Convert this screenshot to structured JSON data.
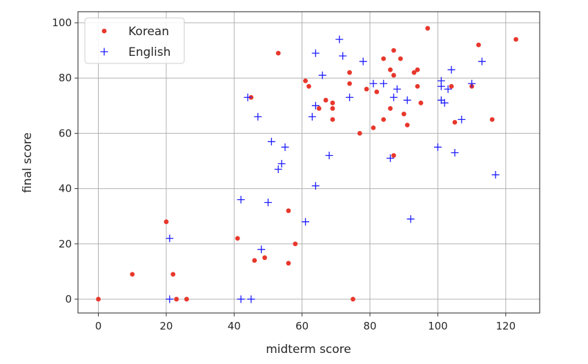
{
  "chart_data": {
    "type": "scatter",
    "title": "",
    "xlabel": "midterm score",
    "ylabel": "final score",
    "xlim": [
      -6,
      130
    ],
    "ylim": [
      -5,
      104
    ],
    "x_ticks": [
      0,
      20,
      40,
      60,
      80,
      100,
      120
    ],
    "y_ticks": [
      0,
      20,
      40,
      60,
      80,
      100
    ],
    "grid": true,
    "legend_position": "top-left",
    "series": [
      {
        "name": "Korean",
        "marker": "dot",
        "color": "#e8372c",
        "points": [
          [
            0,
            0
          ],
          [
            10,
            9
          ],
          [
            20,
            28
          ],
          [
            22,
            9
          ],
          [
            23,
            0
          ],
          [
            26,
            0
          ],
          [
            41,
            22
          ],
          [
            45,
            73
          ],
          [
            46,
            14
          ],
          [
            49,
            15
          ],
          [
            53,
            89
          ],
          [
            56,
            32
          ],
          [
            56,
            13
          ],
          [
            58,
            20
          ],
          [
            61,
            79
          ],
          [
            62,
            77
          ],
          [
            65,
            69
          ],
          [
            67,
            72
          ],
          [
            69,
            71
          ],
          [
            69,
            69
          ],
          [
            69,
            65
          ],
          [
            74,
            82
          ],
          [
            74,
            78
          ],
          [
            75,
            0
          ],
          [
            77,
            60
          ],
          [
            79,
            76
          ],
          [
            81,
            62
          ],
          [
            82,
            75
          ],
          [
            84,
            87
          ],
          [
            84,
            65
          ],
          [
            86,
            83
          ],
          [
            86,
            69
          ],
          [
            87,
            90
          ],
          [
            87,
            81
          ],
          [
            87,
            52
          ],
          [
            89,
            87
          ],
          [
            90,
            67
          ],
          [
            91,
            63
          ],
          [
            93,
            82
          ],
          [
            94,
            83
          ],
          [
            94,
            77
          ],
          [
            95,
            71
          ],
          [
            97,
            98
          ],
          [
            104,
            77
          ],
          [
            105,
            64
          ],
          [
            110,
            77
          ],
          [
            112,
            92
          ],
          [
            116,
            65
          ],
          [
            123,
            94
          ]
        ]
      },
      {
        "name": "English",
        "marker": "plus",
        "color": "#1a1aff",
        "points": [
          [
            21,
            22
          ],
          [
            21,
            0
          ],
          [
            42,
            36
          ],
          [
            42,
            0
          ],
          [
            44,
            73
          ],
          [
            45,
            0
          ],
          [
            47,
            66
          ],
          [
            48,
            18
          ],
          [
            50,
            35
          ],
          [
            51,
            57
          ],
          [
            53,
            47
          ],
          [
            54,
            49
          ],
          [
            55,
            55
          ],
          [
            61,
            28
          ],
          [
            63,
            66
          ],
          [
            64,
            89
          ],
          [
            64,
            70
          ],
          [
            64,
            41
          ],
          [
            66,
            81
          ],
          [
            68,
            52
          ],
          [
            71,
            94
          ],
          [
            72,
            88
          ],
          [
            74,
            73
          ],
          [
            78,
            86
          ],
          [
            81,
            78
          ],
          [
            84,
            78
          ],
          [
            86,
            51
          ],
          [
            87,
            73
          ],
          [
            88,
            76
          ],
          [
            91,
            72
          ],
          [
            92,
            29
          ],
          [
            100,
            55
          ],
          [
            101,
            79
          ],
          [
            101,
            77
          ],
          [
            101,
            72
          ],
          [
            102,
            71
          ],
          [
            103,
            76
          ],
          [
            104,
            83
          ],
          [
            105,
            53
          ],
          [
            107,
            65
          ],
          [
            110,
            78
          ],
          [
            113,
            86
          ],
          [
            117,
            45
          ]
        ]
      }
    ]
  }
}
